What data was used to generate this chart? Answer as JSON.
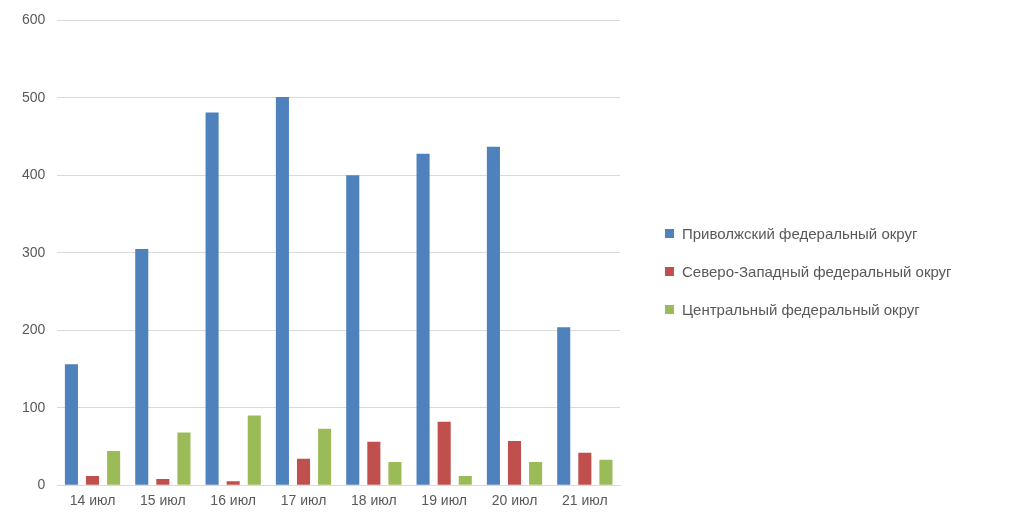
{
  "chart_data": {
    "type": "bar",
    "categories": [
      "14 июл",
      "15 июл",
      "16 июл",
      "17 июл",
      "18 июл",
      "19 июл",
      "20 июл",
      "21 июл"
    ],
    "series": [
      {
        "name": "Приволжский федеральный округ",
        "color": "#4f81bd",
        "values": [
          156,
          305,
          481,
          501,
          400,
          428,
          437,
          204
        ]
      },
      {
        "name": "Северо-Западный федеральный округ",
        "color": "#c0504d",
        "values": [
          12,
          8,
          5,
          34,
          56,
          82,
          57,
          42
        ]
      },
      {
        "name": "Центральный федеральный округ",
        "color": "#9bbb59",
        "values": [
          44,
          68,
          90,
          73,
          30,
          12,
          30,
          33
        ]
      }
    ],
    "ylim": [
      0,
      600
    ],
    "yticks": [
      0,
      100,
      200,
      300,
      400,
      500,
      600
    ],
    "grid": "y",
    "legend": "right"
  }
}
